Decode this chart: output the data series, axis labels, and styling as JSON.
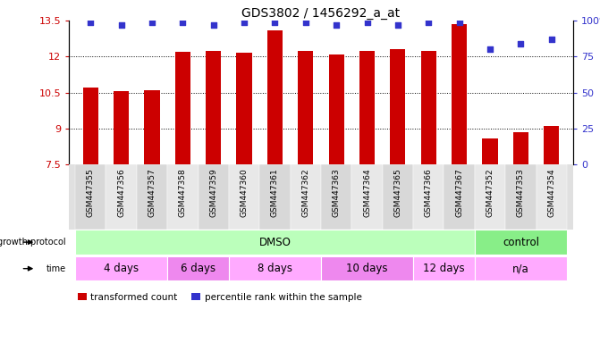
{
  "title": "GDS3802 / 1456292_a_at",
  "samples": [
    "GSM447355",
    "GSM447356",
    "GSM447357",
    "GSM447358",
    "GSM447359",
    "GSM447360",
    "GSM447361",
    "GSM447362",
    "GSM447363",
    "GSM447364",
    "GSM447365",
    "GSM447366",
    "GSM447367",
    "GSM447352",
    "GSM447353",
    "GSM447354"
  ],
  "bar_values": [
    10.7,
    10.55,
    10.6,
    12.2,
    12.25,
    12.15,
    13.1,
    12.25,
    12.1,
    12.25,
    12.3,
    12.25,
    13.35,
    8.6,
    8.85,
    9.1
  ],
  "dot_values": [
    99,
    97,
    99,
    99,
    97,
    99,
    99,
    99,
    97,
    99,
    97,
    99,
    99,
    80,
    84,
    87
  ],
  "ylim_left": [
    7.5,
    13.5
  ],
  "ylim_right": [
    0,
    100
  ],
  "yticks_left": [
    7.5,
    9.0,
    10.5,
    12.0,
    13.5
  ],
  "yticks_right": [
    0,
    25,
    50,
    75,
    100
  ],
  "ytick_labels_left": [
    "7.5",
    "9",
    "10.5",
    "12",
    "13.5"
  ],
  "ytick_labels_right": [
    "0",
    "25",
    "50",
    "75",
    "100%"
  ],
  "bar_color": "#cc0000",
  "dot_color": "#3333cc",
  "grid_color": "#000000",
  "bar_width": 0.5,
  "groups": {
    "growth_protocol": [
      {
        "label": "DMSO",
        "start": 0,
        "end": 13,
        "color": "#bbffbb"
      },
      {
        "label": "control",
        "start": 13,
        "end": 16,
        "color": "#88ee88"
      }
    ],
    "time": [
      {
        "label": "4 days",
        "start": 0,
        "end": 3,
        "color": "#ffaaff"
      },
      {
        "label": "6 days",
        "start": 3,
        "end": 5,
        "color": "#ee88ee"
      },
      {
        "label": "8 days",
        "start": 5,
        "end": 8,
        "color": "#ffaaff"
      },
      {
        "label": "10 days",
        "start": 8,
        "end": 11,
        "color": "#ee88ee"
      },
      {
        "label": "12 days",
        "start": 11,
        "end": 13,
        "color": "#ffaaff"
      },
      {
        "label": "n/a",
        "start": 13,
        "end": 16,
        "color": "#ffaaff"
      }
    ]
  },
  "legend": [
    {
      "label": "transformed count",
      "color": "#cc0000",
      "marker": "s"
    },
    {
      "label": "percentile rank within the sample",
      "color": "#3333cc",
      "marker": "s"
    }
  ],
  "bg_color": "#ffffff",
  "tick_color_left": "#cc0000",
  "tick_color_right": "#3333cc",
  "plot_bg": "#ffffff"
}
